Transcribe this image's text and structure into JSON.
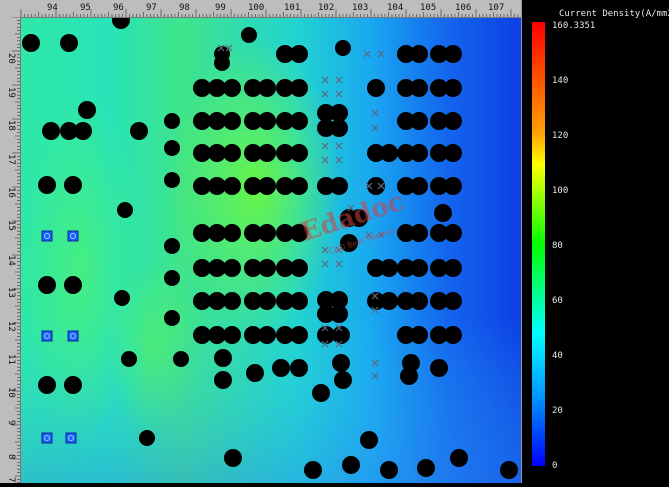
{
  "x_ticks": [
    "94",
    "95",
    "96",
    "97",
    "98",
    "99",
    "100",
    "101",
    "102",
    "103",
    "104",
    "105",
    "106",
    "107"
  ],
  "y_ticks": [
    "20",
    "19",
    "18",
    "17",
    "16",
    "15",
    "14",
    "13",
    "12",
    "11",
    "10",
    "9",
    "8",
    "7"
  ],
  "legend": {
    "title": "Current Density(A/mm2)",
    "max_label": "160.3351",
    "labels": [
      "140",
      "120",
      "100",
      "80",
      "60",
      "40",
      "20",
      "0"
    ]
  },
  "watermark": {
    "main": "Edadoc",
    "sub": "CAD Best Partner"
  },
  "colors": {
    "high": "#ff0000",
    "mid_high": "#ffff00",
    "mid": "#00ff00",
    "mid_low": "#00ffff",
    "low": "#0000ff",
    "via_fill": "#000000",
    "pad_blue": "#1e5cff"
  }
}
